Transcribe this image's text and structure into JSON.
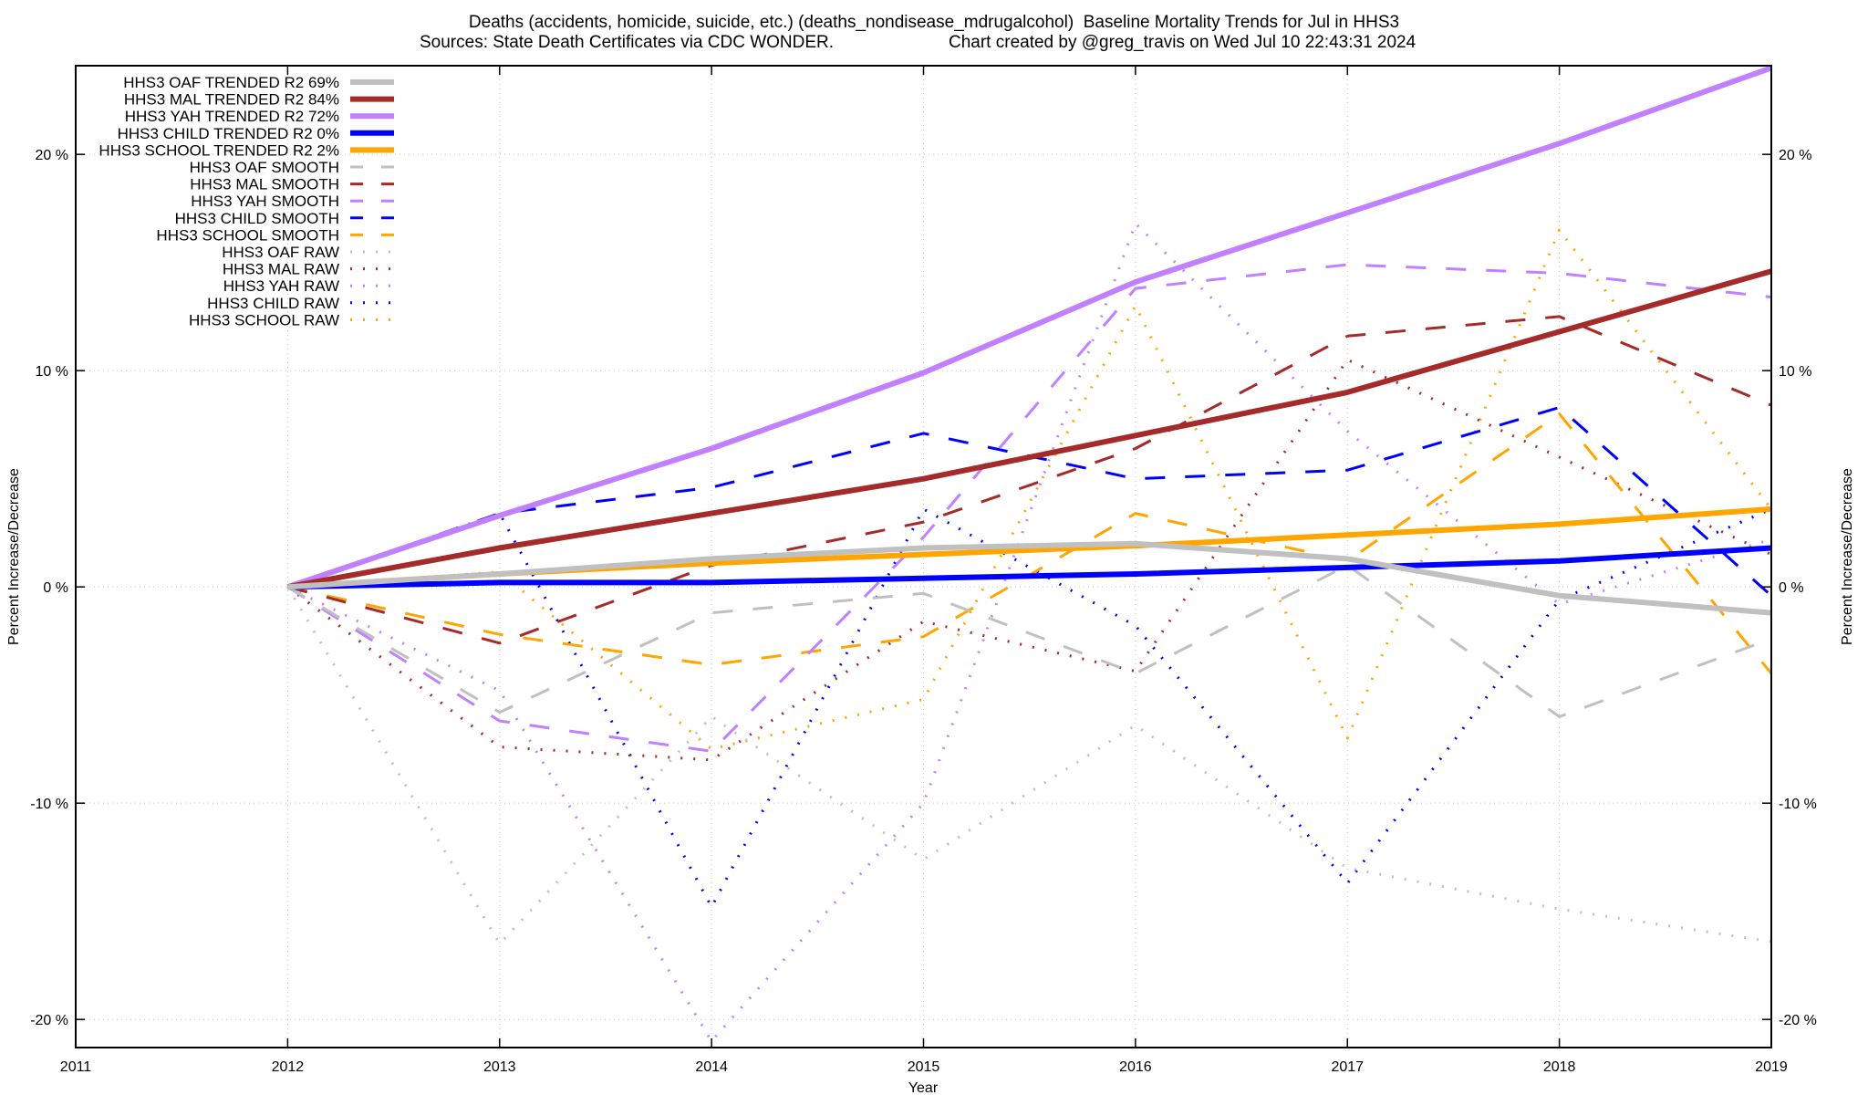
{
  "chart_data": {
    "type": "line",
    "title": "Deaths (accidents, homicide, suicide, etc.) (deaths_nondisease_mdrugalcohol)  Baseline Mortality Trends for Jul in HHS3",
    "subtitle_left": "Sources: State Death Certificates via CDC WONDER.",
    "subtitle_right": "Chart created by @greg_travis on Wed Jul 10 22:43:31 2024",
    "xlabel": "Year",
    "ylabel": "Percent Increase/Decrease",
    "y2label": "Percent Increase/Decrease",
    "xlim": [
      2011,
      2019
    ],
    "ylim": [
      -21.3,
      24.1
    ],
    "x_ticks": [
      "2011",
      "2012",
      "2013",
      "2014",
      "2015",
      "2016",
      "2017",
      "2018",
      "2019"
    ],
    "y_ticks": [
      {
        "value": -20,
        "label": "-20 %"
      },
      {
        "value": -10,
        "label": "-10 %"
      },
      {
        "value": 0,
        "label": "0 %"
      },
      {
        "value": 10,
        "label": "10 %"
      },
      {
        "value": 20,
        "label": "20 %"
      }
    ],
    "grid": true,
    "legend_position": "top-left",
    "x": [
      2012,
      2013,
      2014,
      2015,
      2016,
      2017,
      2018,
      2019
    ],
    "series": [
      {
        "name": "HHS3 OAF TRENDED R2",
        "r2": "69%",
        "color": "#c0c0c0",
        "style": "solid",
        "values": [
          0,
          0.6,
          1.3,
          1.8,
          2.0,
          1.3,
          -0.4,
          -1.2
        ]
      },
      {
        "name": "HHS3 MAL TRENDED R2",
        "r2": "84%",
        "color": "#a52a2a",
        "style": "solid",
        "values": [
          0,
          1.8,
          3.4,
          5.0,
          7.0,
          9.0,
          11.8,
          14.6
        ]
      },
      {
        "name": "HHS3 YAH TRENDED R2",
        "r2": "72%",
        "color": "#c080ff",
        "style": "solid",
        "values": [
          0,
          3.3,
          6.4,
          9.9,
          14.1,
          17.3,
          20.5,
          24.0
        ]
      },
      {
        "name": "HHS3 CHILD TRENDED R2",
        "r2": "0%",
        "color": "#0000ff",
        "style": "solid",
        "values": [
          0,
          0.2,
          0.2,
          0.4,
          0.6,
          0.9,
          1.2,
          1.8
        ]
      },
      {
        "name": "HHS3 SCHOOL TRENDED R2",
        "r2": "2%",
        "color": "#ffa500",
        "style": "solid",
        "values": [
          0,
          0.6,
          1.1,
          1.5,
          1.9,
          2.4,
          2.9,
          3.6
        ]
      },
      {
        "name": "HHS3 OAF SMOOTH",
        "r2": "",
        "color": "#c0c0c0",
        "style": "dashed",
        "values": [
          0,
          -5.8,
          -1.2,
          -0.3,
          -4.0,
          1.0,
          -6.0,
          -2.4
        ]
      },
      {
        "name": "HHS3 MAL SMOOTH",
        "r2": "",
        "color": "#a52a2a",
        "style": "dashed",
        "values": [
          0,
          -2.6,
          1.0,
          3.0,
          6.4,
          11.6,
          12.5,
          8.4
        ]
      },
      {
        "name": "HHS3 YAH SMOOTH",
        "r2": "",
        "color": "#c080ff",
        "style": "dashed",
        "values": [
          0,
          -6.2,
          -7.6,
          2.3,
          13.8,
          14.9,
          14.5,
          13.4
        ]
      },
      {
        "name": "HHS3 CHILD SMOOTH",
        "r2": "",
        "color": "#0000ff",
        "style": "dashed",
        "values": [
          0,
          3.4,
          4.6,
          7.1,
          5.0,
          5.4,
          8.3,
          -0.4
        ]
      },
      {
        "name": "HHS3 SCHOOL SMOOTH",
        "r2": "",
        "color": "#ffa500",
        "style": "dashed",
        "values": [
          0,
          -2.2,
          -3.6,
          -2.3,
          3.4,
          1.2,
          8.0,
          -4.0
        ]
      },
      {
        "name": "HHS3 OAF RAW",
        "r2": "",
        "color": "#c0c0c0",
        "style": "dotted",
        "values": [
          0,
          -16.5,
          -6.0,
          -12.6,
          -6.4,
          -13.0,
          -14.9,
          -16.4
        ]
      },
      {
        "name": "HHS3 MAL RAW",
        "r2": "",
        "color": "#a52a2a",
        "style": "dotted",
        "values": [
          0,
          -7.4,
          -8.0,
          -1.6,
          -3.9,
          10.5,
          6.0,
          1.5
        ]
      },
      {
        "name": "HHS3 YAH RAW",
        "r2": "",
        "color": "#c080ff",
        "style": "dotted",
        "values": [
          0,
          -4.8,
          -21.0,
          -10.0,
          16.8,
          7.2,
          -0.8,
          2.2
        ]
      },
      {
        "name": "HHS3 CHILD RAW",
        "r2": "",
        "color": "#0000ff",
        "style": "dotted",
        "values": [
          0,
          3.4,
          -14.8,
          3.6,
          -1.8,
          -13.7,
          -0.6,
          3.6
        ]
      },
      {
        "name": "HHS3 SCHOOL RAW",
        "r2": "",
        "color": "#ffa500",
        "style": "dotted",
        "values": [
          0,
          0.7,
          -7.5,
          -5.2,
          13.0,
          -7.0,
          16.5,
          3.6
        ]
      }
    ]
  }
}
